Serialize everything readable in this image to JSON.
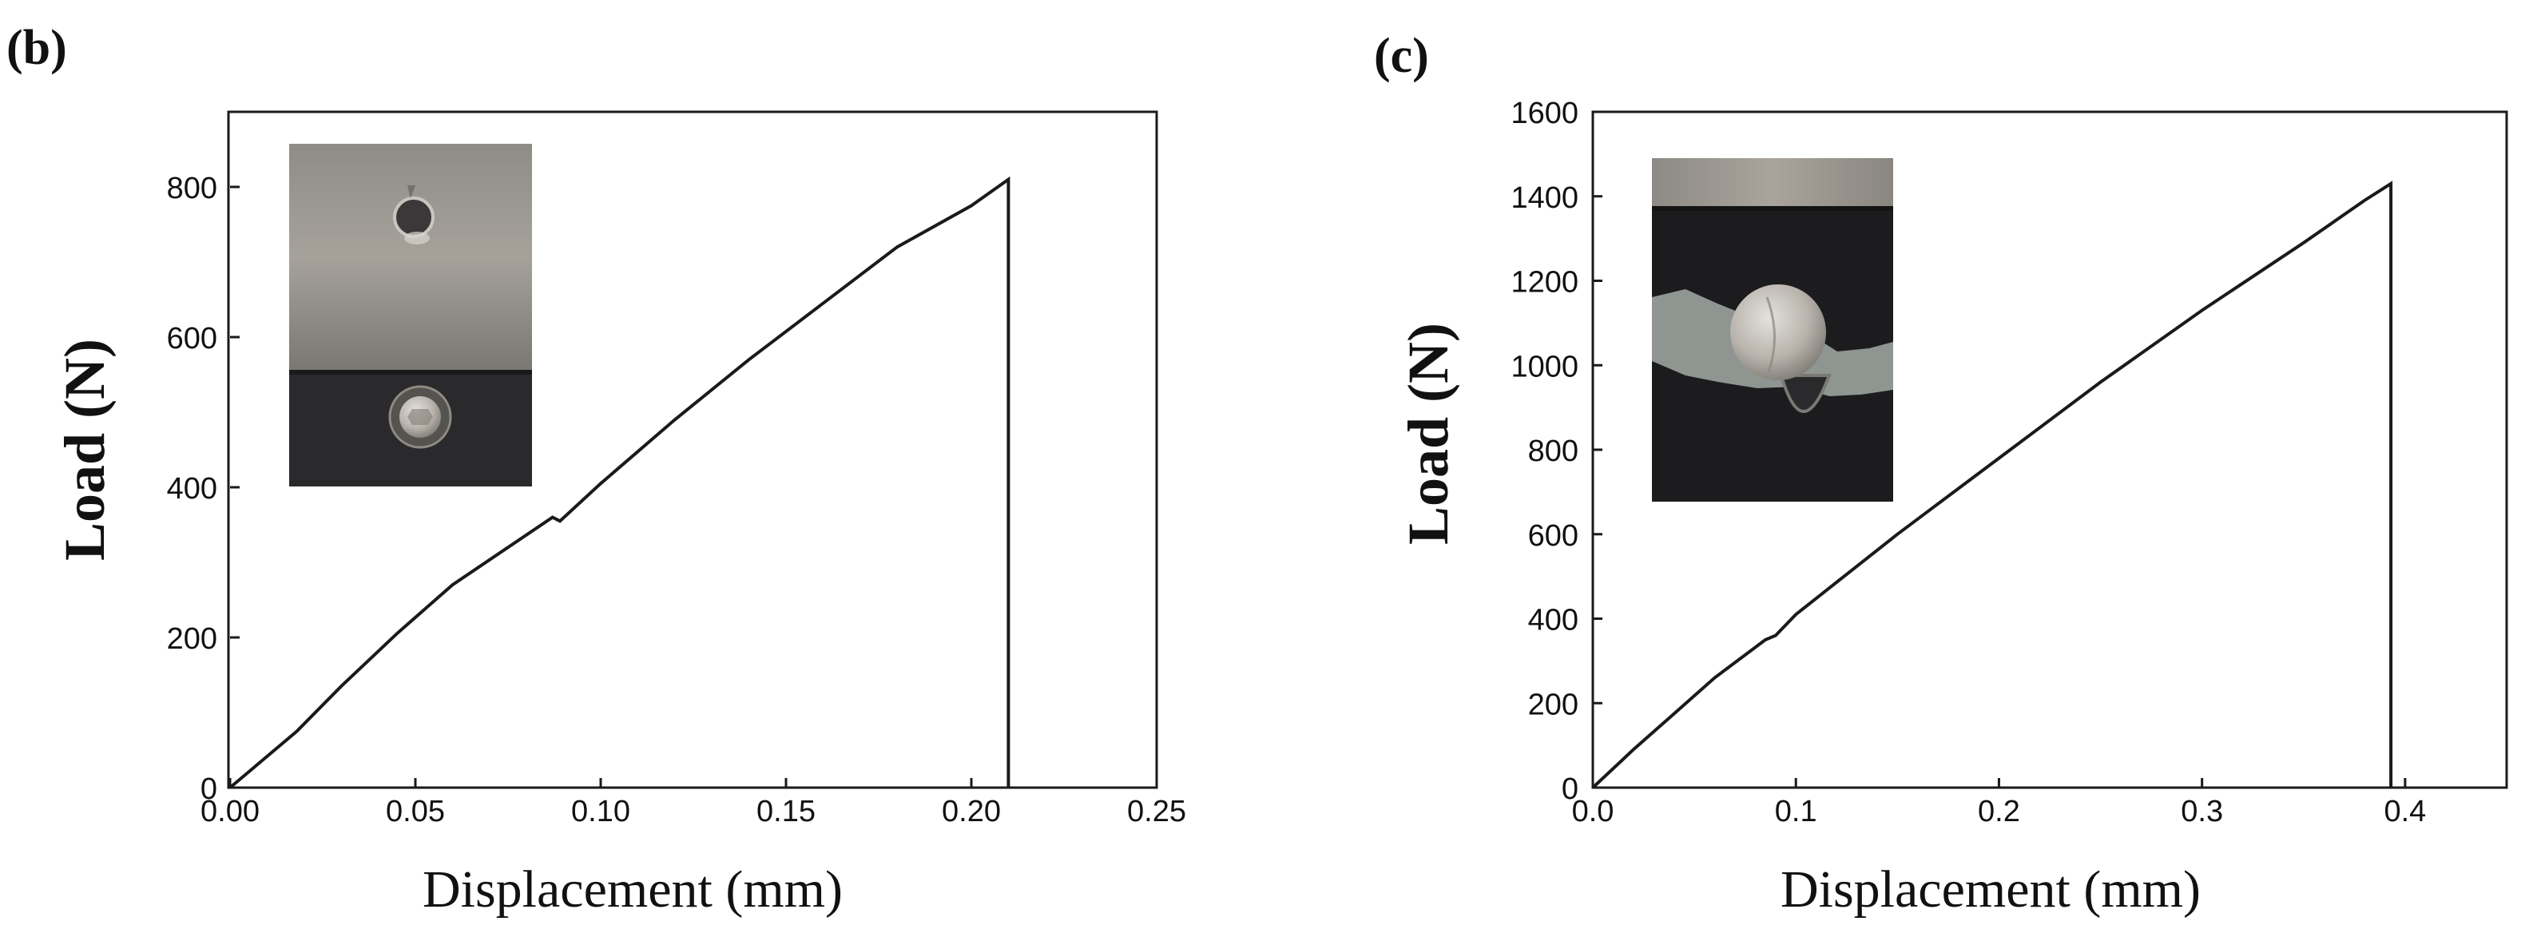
{
  "panels": [
    {
      "label": "(b)"
    },
    {
      "label": "(c)"
    }
  ],
  "chart_data": [
    {
      "type": "line",
      "xlabel": "Displacement (mm)",
      "ylabel": "Load (N)",
      "xlim": [
        0,
        0.25
      ],
      "ylim": [
        0,
        900
      ],
      "x_ticks": [
        "0.00",
        "0.05",
        "0.10",
        "0.15",
        "0.20",
        "0.25"
      ],
      "y_ticks": [
        "0",
        "200",
        "400",
        "600",
        "800"
      ],
      "grid": false,
      "inset_photo": true,
      "series": [
        {
          "x": [
            0,
            0.018,
            0.03,
            0.045,
            0.06,
            0.075,
            0.087,
            0.089,
            0.1,
            0.12,
            0.14,
            0.16,
            0.18,
            0.2,
            0.21,
            0.21
          ],
          "y": [
            0,
            75,
            135,
            205,
            270,
            320,
            360,
            355,
            405,
            490,
            570,
            645,
            720,
            775,
            810,
            0
          ]
        }
      ]
    },
    {
      "type": "line",
      "xlabel": "Displacement (mm)",
      "ylabel": "Load (N)",
      "xlim": [
        0,
        0.45
      ],
      "ylim": [
        0,
        1600
      ],
      "x_ticks": [
        "0.0",
        "0.1",
        "0.2",
        "0.3",
        "0.4"
      ],
      "y_ticks": [
        "0",
        "200",
        "400",
        "600",
        "800",
        "1000",
        "1200",
        "1400",
        "1600"
      ],
      "grid": false,
      "inset_photo": true,
      "series": [
        {
          "x": [
            0,
            0.02,
            0.04,
            0.06,
            0.085,
            0.09,
            0.1,
            0.15,
            0.2,
            0.25,
            0.3,
            0.35,
            0.38,
            0.393,
            0.393
          ],
          "y": [
            0,
            90,
            175,
            260,
            350,
            360,
            410,
            600,
            780,
            960,
            1130,
            1290,
            1390,
            1430,
            0
          ]
        }
      ]
    }
  ]
}
